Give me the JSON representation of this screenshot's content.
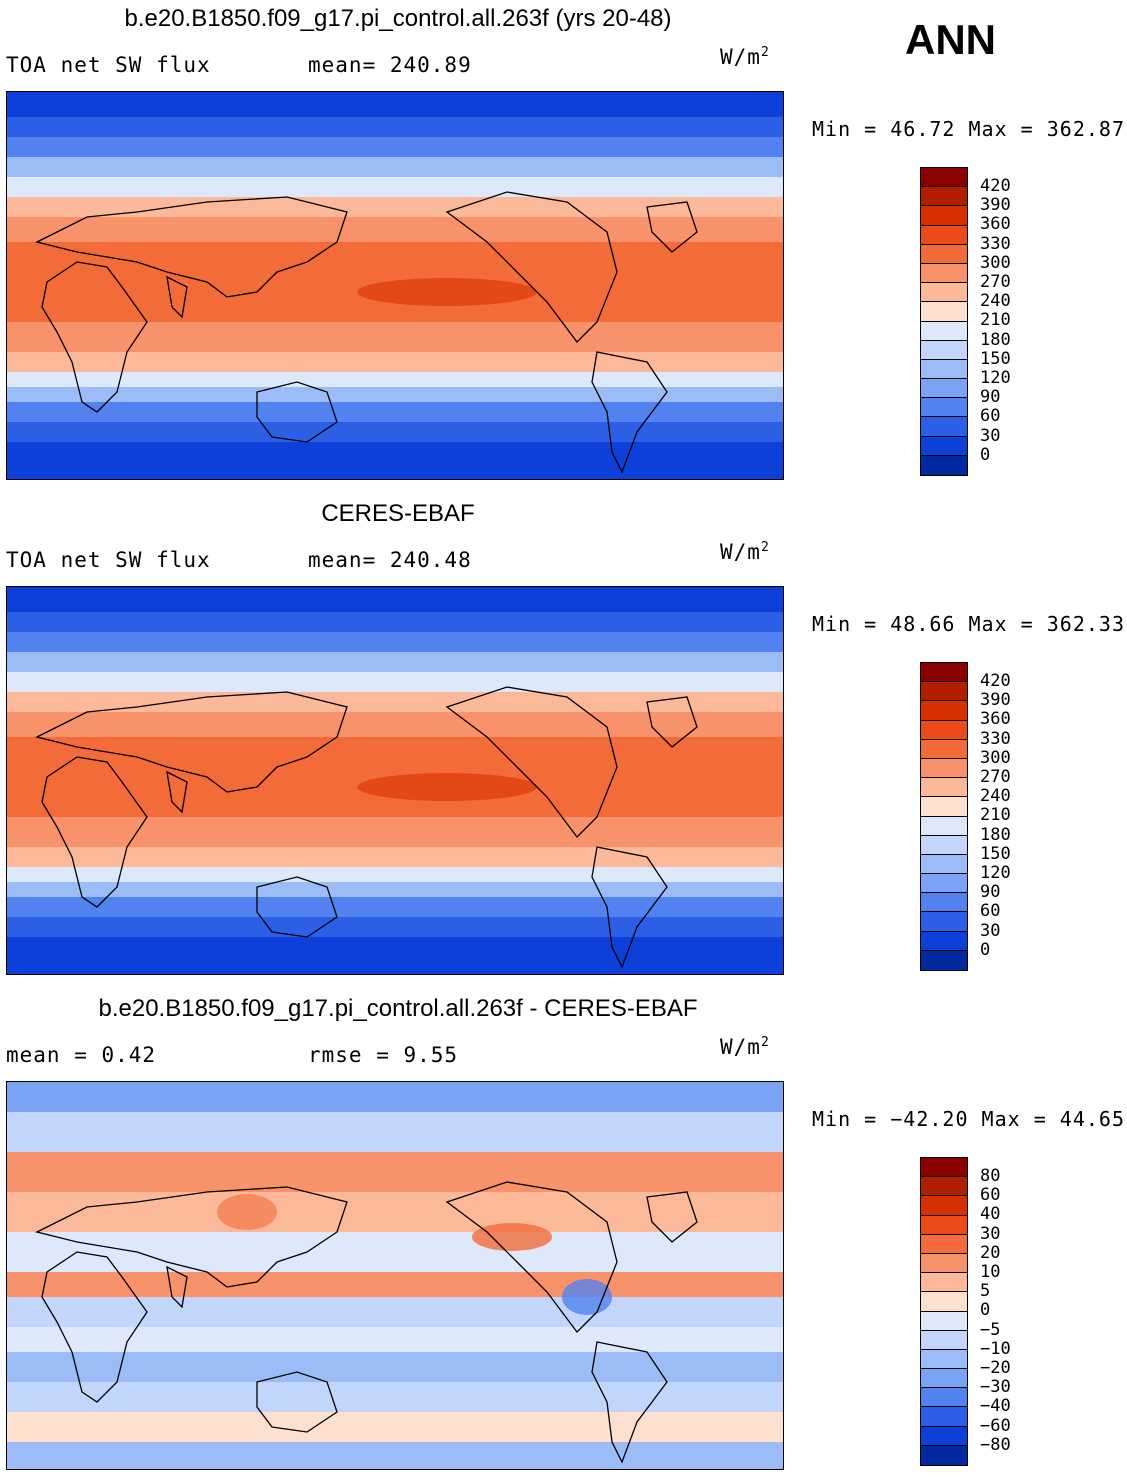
{
  "season": "ANN",
  "panels": [
    {
      "title": "b.e20.B1850.f09_g17.pi_control.all.263f (yrs 20-48)",
      "left_label": "TOA net SW flux",
      "stat_label": "mean= 240.89",
      "units_base": "W/m",
      "units_exp": "2",
      "minmax": "Min =  46.72 Max = 362.87",
      "colorbar": {
        "levels": [
          "420",
          "390",
          "360",
          "330",
          "300",
          "270",
          "240",
          "210",
          "180",
          "150",
          "120",
          "90",
          "60",
          "30",
          "0"
        ],
        "colors": [
          "#8b0000",
          "#b41e00",
          "#d73000",
          "#ed4a1a",
          "#f46b3a",
          "#f8926a",
          "#fbb99a",
          "#fde0ce",
          "#dde9fb",
          "#c2d6fb",
          "#9cbcf7",
          "#7aa2f5",
          "#5182ef",
          "#2d5fe6",
          "#0d3fd9",
          "#002a9e"
        ]
      },
      "chart_data": {
        "type": "heatmap",
        "variable": "TOA net SW flux",
        "units": "W/m2",
        "mean": 240.89,
        "min": 46.72,
        "max": 362.87,
        "contour_levels": [
          0,
          30,
          60,
          90,
          120,
          150,
          180,
          210,
          240,
          270,
          300,
          330,
          360,
          390,
          420
        ]
      }
    },
    {
      "title": "CERES-EBAF",
      "left_label": "TOA net SW flux",
      "stat_label": "mean= 240.48",
      "units_base": "W/m",
      "units_exp": "2",
      "minmax": "Min =  48.66 Max = 362.33",
      "colorbar": {
        "levels": [
          "420",
          "390",
          "360",
          "330",
          "300",
          "270",
          "240",
          "210",
          "180",
          "150",
          "120",
          "90",
          "60",
          "30",
          "0"
        ],
        "colors": [
          "#8b0000",
          "#b41e00",
          "#d73000",
          "#ed4a1a",
          "#f46b3a",
          "#f8926a",
          "#fbb99a",
          "#fde0ce",
          "#dde9fb",
          "#c2d6fb",
          "#9cbcf7",
          "#7aa2f5",
          "#5182ef",
          "#2d5fe6",
          "#0d3fd9",
          "#002a9e"
        ]
      },
      "chart_data": {
        "type": "heatmap",
        "variable": "TOA net SW flux",
        "units": "W/m2",
        "mean": 240.48,
        "min": 48.66,
        "max": 362.33,
        "contour_levels": [
          0,
          30,
          60,
          90,
          120,
          150,
          180,
          210,
          240,
          270,
          300,
          330,
          360,
          390,
          420
        ]
      }
    },
    {
      "title": "b.e20.B1850.f09_g17.pi_control.all.263f - CERES-EBAF",
      "left_label": "mean =    0.42",
      "stat_label": "rmse =    9.55",
      "units_base": "W/m",
      "units_exp": "2",
      "minmax": "Min = −42.20 Max =  44.65",
      "colorbar": {
        "levels": [
          "80",
          "60",
          "40",
          "30",
          "20",
          "10",
          "5",
          "0",
          "−5",
          "−10",
          "−20",
          "−30",
          "−40",
          "−60",
          "−80"
        ],
        "colors": [
          "#8b0000",
          "#b41e00",
          "#d73000",
          "#ed4a1a",
          "#f46b3a",
          "#f8926a",
          "#fbb99a",
          "#fde0ce",
          "#dde9fb",
          "#c2d6fb",
          "#9cbcf7",
          "#7aa2f5",
          "#5182ef",
          "#2d5fe6",
          "#0d3fd9",
          "#002a9e"
        ]
      },
      "chart_data": {
        "type": "heatmap",
        "variable": "difference",
        "units": "W/m2",
        "mean": 0.42,
        "rmse": 9.55,
        "min": -42.2,
        "max": 44.65,
        "contour_levels": [
          -80,
          -60,
          -40,
          -30,
          -20,
          -10,
          -5,
          0,
          5,
          10,
          20,
          30,
          40,
          60,
          80
        ]
      }
    }
  ]
}
